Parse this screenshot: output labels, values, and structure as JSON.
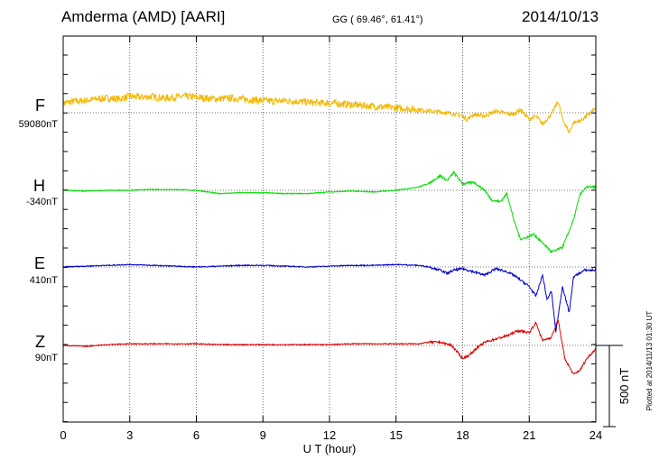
{
  "header": {
    "station": "Amderma (AMD)  [AARI]",
    "coords": "GG ( 69.46°,  61.41°)",
    "date": "2014/10/13"
  },
  "footer": {
    "plotted": "Plotted at 2014/11/13 01:30 UT"
  },
  "colors": {
    "F": "#f5b800",
    "H": "#00dd00",
    "E": "#0000cc",
    "Z": "#dd0000",
    "frame": "#000000"
  },
  "chart_data": {
    "type": "line",
    "title": "Amderma (AMD)  [AARI]",
    "xlabel": "U T (hour)",
    "xlim": [
      0,
      24
    ],
    "x_ticks": [
      "0",
      "3",
      "6",
      "9",
      "12",
      "15",
      "18",
      "21",
      "24"
    ],
    "scale_bar": {
      "label": "500 nT",
      "value_nT": 500
    },
    "series": [
      {
        "name": "F",
        "baseline": "59080nT",
        "base_value_nT": 59080,
        "x": [
          0,
          0.5,
          1,
          1.5,
          2,
          2.5,
          3,
          3.5,
          4,
          4.5,
          5,
          5.5,
          6,
          6.5,
          7,
          7.5,
          8,
          8.5,
          9,
          9.5,
          10,
          10.5,
          11,
          11.5,
          12,
          12.5,
          13,
          13.5,
          14,
          14.5,
          15,
          15.5,
          16,
          16.5,
          17,
          17.5,
          18,
          18.2,
          18.5,
          19,
          19.5,
          20,
          20.3,
          20.6,
          21,
          21.3,
          21.6,
          22,
          22.3,
          22.5,
          22.8,
          23,
          23.3,
          23.6,
          24
        ],
        "values": [
          60,
          70,
          75,
          85,
          90,
          85,
          100,
          95,
          100,
          90,
          95,
          100,
          95,
          90,
          85,
          90,
          85,
          80,
          75,
          70,
          75,
          70,
          65,
          60,
          60,
          55,
          50,
          45,
          40,
          35,
          30,
          25,
          20,
          10,
          5,
          -5,
          -20,
          -40,
          -10,
          -20,
          10,
          -5,
          -10,
          20,
          -40,
          -20,
          -70,
          -10,
          70,
          -40,
          -120,
          -60,
          -50,
          -20,
          30
        ]
      },
      {
        "name": "H",
        "baseline": "-340nT",
        "base_value_nT": -340,
        "x": [
          0,
          1,
          2,
          3,
          4,
          5,
          6,
          7,
          8,
          9,
          10,
          11,
          12,
          13,
          14,
          15,
          16,
          16.5,
          17,
          17.3,
          17.6,
          18,
          18.5,
          19,
          19.3,
          19.7,
          20,
          20.3,
          20.6,
          20.9,
          21.2,
          21.5,
          21.8,
          22,
          22.2,
          22.5,
          22.8,
          23,
          23.3,
          23.6,
          24
        ],
        "values": [
          0,
          -5,
          0,
          0,
          5,
          5,
          0,
          -20,
          -15,
          -15,
          -20,
          -20,
          -10,
          -5,
          -10,
          0,
          20,
          45,
          90,
          60,
          110,
          40,
          50,
          0,
          -60,
          -70,
          -20,
          -180,
          -300,
          -290,
          -270,
          -310,
          -350,
          -380,
          -370,
          -350,
          -250,
          -180,
          -20,
          20,
          20
        ]
      },
      {
        "name": "E",
        "baseline": "410nT",
        "base_value_nT": 410,
        "x": [
          0,
          1,
          2,
          3,
          4,
          5,
          6,
          7,
          8,
          9,
          10,
          11,
          12,
          13,
          14,
          15,
          16,
          16.5,
          17,
          17.3,
          17.6,
          18,
          18.5,
          19,
          19.5,
          20,
          20.3,
          20.6,
          21,
          21.3,
          21.6,
          21.8,
          22,
          22.2,
          22.5,
          22.8,
          23,
          23.5,
          24
        ],
        "values": [
          0,
          5,
          10,
          15,
          10,
          5,
          0,
          5,
          10,
          10,
          5,
          0,
          5,
          10,
          10,
          15,
          10,
          0,
          -20,
          -40,
          -20,
          -10,
          -30,
          -50,
          -10,
          -30,
          -50,
          -80,
          -120,
          -180,
          -50,
          -200,
          -150,
          -400,
          -120,
          -280,
          -60,
          -20,
          -20
        ]
      },
      {
        "name": "Z",
        "baseline": "90nT",
        "base_value_nT": 90,
        "x": [
          0,
          1,
          2,
          3,
          4,
          5,
          6,
          7,
          8,
          9,
          10,
          11,
          12,
          13,
          14,
          15,
          16,
          16.5,
          17,
          17.5,
          18,
          18.3,
          18.6,
          19,
          19.5,
          20,
          20.5,
          21,
          21.3,
          21.6,
          22,
          22.3,
          22.6,
          23,
          23.3,
          23.6,
          24
        ],
        "values": [
          0,
          -5,
          5,
          10,
          10,
          10,
          10,
          5,
          5,
          5,
          5,
          5,
          5,
          10,
          10,
          10,
          10,
          20,
          20,
          0,
          -80,
          -60,
          -20,
          20,
          40,
          60,
          90,
          80,
          140,
          30,
          50,
          160,
          -80,
          -180,
          -150,
          -80,
          -20
        ]
      }
    ]
  }
}
